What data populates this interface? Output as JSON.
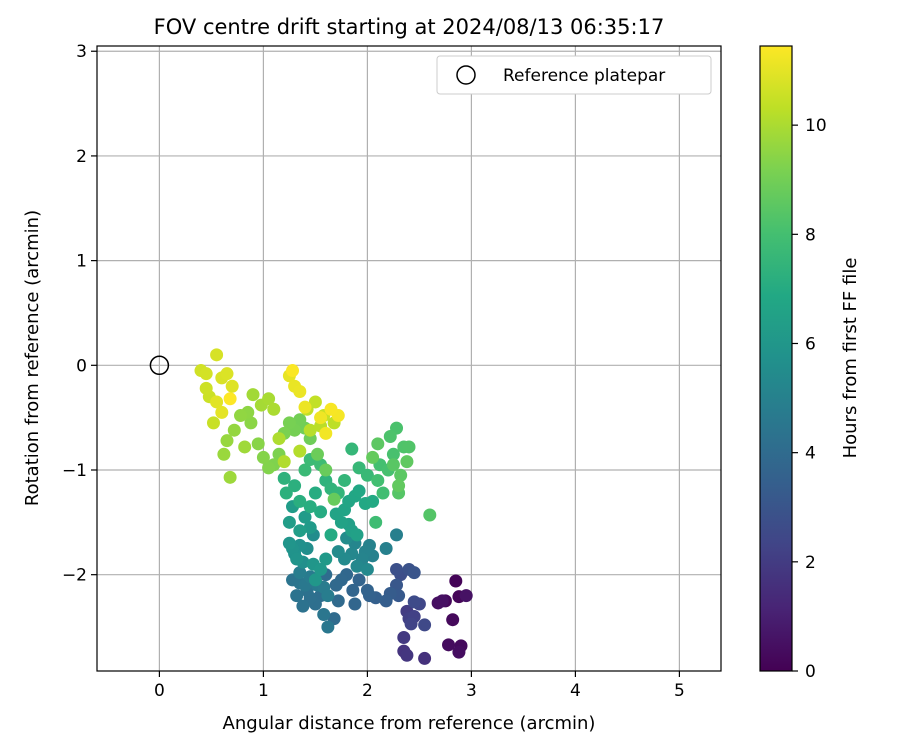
{
  "chart_data": {
    "type": "scatter",
    "title": "FOV centre drift starting at 2024/08/13 06:35:17",
    "xlabel": "Angular distance from reference (arcmin)",
    "ylabel": "Rotation from reference (arcmin)",
    "xlim": [
      -0.6,
      5.4
    ],
    "ylim": [
      -2.92,
      3.05
    ],
    "xticks": [
      0,
      1,
      2,
      3,
      4,
      5
    ],
    "yticks": [
      -2,
      -1,
      0,
      1,
      2,
      3
    ],
    "xtick_labels": [
      "0",
      "1",
      "2",
      "3",
      "4",
      "5"
    ],
    "ytick_labels": [
      "−2",
      "−1",
      "0",
      "1",
      "2",
      "3"
    ],
    "grid": true,
    "legend": {
      "placement": "top-right",
      "entry": "Reference platepar"
    },
    "reference_point": {
      "x": 0,
      "y": 0
    },
    "colorbar": {
      "label": "Hours from first FF file",
      "range": [
        0,
        11.45
      ],
      "ticks": [
        0,
        2,
        4,
        6,
        8,
        10
      ],
      "tick_labels": [
        "0",
        "2",
        "4",
        "6",
        "8",
        "10"
      ],
      "colormap": "viridis"
    },
    "points": [
      [
        2.85,
        -2.06,
        0.1
      ],
      [
        2.88,
        -2.21,
        0.15
      ],
      [
        2.75,
        -2.25,
        0.2
      ],
      [
        2.82,
        -2.43,
        0.25
      ],
      [
        2.9,
        -2.68,
        0.3
      ],
      [
        2.78,
        -2.67,
        0.35
      ],
      [
        2.88,
        -2.74,
        0.4
      ],
      [
        2.68,
        -2.27,
        0.45
      ],
      [
        2.72,
        -2.25,
        0.5
      ],
      [
        2.95,
        -2.2,
        0.55
      ],
      [
        2.55,
        -2.8,
        1.6
      ],
      [
        2.35,
        -2.73,
        1.7
      ],
      [
        2.38,
        -2.77,
        1.8
      ],
      [
        2.35,
        -2.6,
        1.9
      ],
      [
        2.38,
        -2.35,
        2.0
      ],
      [
        2.4,
        -2.42,
        2.1
      ],
      [
        2.45,
        -2.4,
        2.2
      ],
      [
        2.42,
        -2.47,
        2.3
      ],
      [
        2.5,
        -2.28,
        2.4
      ],
      [
        2.55,
        -2.48,
        2.5
      ],
      [
        2.45,
        -2.26,
        2.6
      ],
      [
        2.32,
        -2.0,
        2.7
      ],
      [
        2.28,
        -1.95,
        2.8
      ],
      [
        2.4,
        -1.95,
        2.9
      ],
      [
        2.45,
        -1.98,
        3.0
      ],
      [
        2.28,
        -2.1,
        3.1
      ],
      [
        2.3,
        -2.2,
        3.2
      ],
      [
        2.22,
        -2.18,
        3.3
      ],
      [
        2.18,
        -2.25,
        3.4
      ],
      [
        2.08,
        -2.22,
        3.5
      ],
      [
        2.02,
        -2.2,
        3.55
      ],
      [
        2.0,
        -2.15,
        3.6
      ],
      [
        1.92,
        -2.05,
        3.65
      ],
      [
        1.86,
        -2.15,
        3.7
      ],
      [
        1.88,
        -2.28,
        3.75
      ],
      [
        1.8,
        -2.0,
        3.8
      ],
      [
        1.75,
        -2.05,
        3.85
      ],
      [
        1.7,
        -2.1,
        3.9
      ],
      [
        1.72,
        -2.25,
        3.95
      ],
      [
        1.68,
        -2.42,
        4.0
      ],
      [
        1.6,
        -2.0,
        4.05
      ],
      [
        1.55,
        -2.2,
        4.1
      ],
      [
        1.5,
        -2.28,
        4.15
      ],
      [
        1.45,
        -2.22,
        4.2
      ],
      [
        1.42,
        -2.15,
        4.25
      ],
      [
        1.38,
        -2.3,
        4.3
      ],
      [
        1.32,
        -2.2,
        4.35
      ],
      [
        1.28,
        -2.05,
        4.4
      ],
      [
        1.35,
        -2.08,
        4.45
      ],
      [
        1.58,
        -2.38,
        4.5
      ],
      [
        1.62,
        -2.5,
        4.55
      ],
      [
        1.4,
        -2.1,
        4.6
      ],
      [
        1.52,
        -2.1,
        4.65
      ],
      [
        1.45,
        -2.02,
        4.7
      ],
      [
        1.58,
        -2.12,
        4.75
      ],
      [
        1.62,
        -2.2,
        4.8
      ],
      [
        1.35,
        -1.98,
        4.85
      ],
      [
        2.28,
        -1.62,
        4.9
      ],
      [
        2.18,
        -1.75,
        4.95
      ],
      [
        2.05,
        -1.82,
        5.0
      ],
      [
        2.02,
        -1.72,
        5.05
      ],
      [
        1.98,
        -1.78,
        5.1
      ],
      [
        1.95,
        -1.85,
        5.15
      ],
      [
        1.88,
        -1.7,
        5.2
      ],
      [
        1.85,
        -1.8,
        5.25
      ],
      [
        1.9,
        -1.92,
        5.3
      ],
      [
        2.0,
        -1.95,
        5.35
      ],
      [
        1.78,
        -1.85,
        5.4
      ],
      [
        1.72,
        -1.78,
        5.45
      ],
      [
        1.8,
        -1.65,
        5.5
      ],
      [
        1.48,
        -1.62,
        5.55
      ],
      [
        1.42,
        -1.75,
        5.6
      ],
      [
        1.38,
        -1.88,
        5.65
      ],
      [
        1.35,
        -1.72,
        5.7
      ],
      [
        1.3,
        -1.8,
        5.75
      ],
      [
        1.28,
        -1.75,
        5.8
      ],
      [
        1.32,
        -1.85,
        5.85
      ],
      [
        1.25,
        -1.7,
        5.9
      ],
      [
        1.48,
        -1.9,
        5.95
      ],
      [
        1.5,
        -2.05,
        6.0
      ],
      [
        1.55,
        -1.95,
        6.05
      ],
      [
        1.6,
        -1.85,
        6.1
      ],
      [
        1.45,
        -1.55,
        6.15
      ],
      [
        1.4,
        -1.45,
        6.2
      ],
      [
        1.28,
        -1.35,
        6.25
      ],
      [
        1.25,
        -1.5,
        6.3
      ],
      [
        1.35,
        -1.58,
        6.35
      ],
      [
        1.82,
        -1.52,
        6.4
      ],
      [
        1.85,
        -1.58,
        6.45
      ],
      [
        1.9,
        -1.62,
        6.5
      ],
      [
        1.75,
        -1.5,
        6.55
      ],
      [
        1.7,
        -1.42,
        6.6
      ],
      [
        1.78,
        -1.38,
        6.65
      ],
      [
        1.82,
        -1.3,
        6.7
      ],
      [
        1.88,
        -1.25,
        6.75
      ],
      [
        1.92,
        -1.2,
        6.8
      ],
      [
        1.98,
        -1.32,
        6.85
      ],
      [
        2.05,
        -1.3,
        6.9
      ],
      [
        1.65,
        -1.62,
        6.95
      ],
      [
        1.55,
        -1.4,
        7.0
      ],
      [
        1.5,
        -1.22,
        7.05
      ],
      [
        1.45,
        -1.35,
        7.1
      ],
      [
        1.35,
        -1.3,
        7.15
      ],
      [
        1.3,
        -1.15,
        7.2
      ],
      [
        1.22,
        -1.22,
        7.25
      ],
      [
        1.2,
        -1.08,
        7.3
      ],
      [
        1.6,
        -1.1,
        7.35
      ],
      [
        1.65,
        -1.18,
        7.4
      ],
      [
        1.72,
        -1.22,
        7.45
      ],
      [
        1.78,
        -1.1,
        7.5
      ],
      [
        1.85,
        -0.8,
        7.55
      ],
      [
        1.92,
        -0.98,
        7.6
      ],
      [
        2.0,
        -1.05,
        7.65
      ],
      [
        1.4,
        -1.0,
        7.7
      ],
      [
        1.45,
        -0.9,
        7.75
      ],
      [
        1.55,
        -0.95,
        7.8
      ],
      [
        2.08,
        -1.5,
        7.85
      ],
      [
        2.15,
        -1.22,
        7.9
      ],
      [
        2.1,
        -1.1,
        7.95
      ],
      [
        2.12,
        -0.95,
        8.0
      ],
      [
        2.2,
        -1.0,
        8.05
      ],
      [
        2.25,
        -0.85,
        8.1
      ],
      [
        2.28,
        -0.6,
        8.15
      ],
      [
        2.22,
        -0.68,
        8.2
      ],
      [
        2.35,
        -0.78,
        8.25
      ],
      [
        2.4,
        -0.78,
        8.3
      ],
      [
        2.6,
        -1.43,
        8.35
      ],
      [
        2.3,
        -1.22,
        8.4
      ],
      [
        2.25,
        -0.95,
        8.45
      ],
      [
        2.32,
        -1.05,
        8.5
      ],
      [
        2.1,
        -0.75,
        8.55
      ],
      [
        2.38,
        -0.92,
        8.6
      ],
      [
        2.3,
        -1.15,
        8.65
      ],
      [
        2.05,
        -0.88,
        8.7
      ],
      [
        1.68,
        -1.28,
        8.75
      ],
      [
        1.6,
        -1.0,
        8.8
      ],
      [
        1.52,
        -0.85,
        8.85
      ],
      [
        1.45,
        -0.7,
        8.9
      ],
      [
        1.4,
        -0.6,
        8.95
      ],
      [
        1.35,
        -0.52,
        9.0
      ],
      [
        1.3,
        -0.62,
        9.05
      ],
      [
        1.25,
        -0.55,
        9.1
      ],
      [
        1.2,
        -0.65,
        9.15
      ],
      [
        1.15,
        -0.85,
        9.2
      ],
      [
        1.1,
        -0.95,
        9.25
      ],
      [
        1.05,
        -0.98,
        9.3
      ],
      [
        1.0,
        -0.88,
        9.35
      ],
      [
        0.95,
        -0.75,
        9.4
      ],
      [
        0.88,
        -0.55,
        9.45
      ],
      [
        0.85,
        -0.45,
        9.5
      ],
      [
        0.78,
        -0.48,
        9.55
      ],
      [
        0.72,
        -0.62,
        9.6
      ],
      [
        0.65,
        -0.72,
        9.65
      ],
      [
        0.62,
        -0.85,
        9.7
      ],
      [
        0.68,
        -1.07,
        9.75
      ],
      [
        0.82,
        -0.78,
        9.8
      ],
      [
        0.9,
        -0.28,
        9.85
      ],
      [
        0.98,
        -0.38,
        9.9
      ],
      [
        1.05,
        -0.32,
        9.95
      ],
      [
        1.1,
        -0.42,
        10.0
      ],
      [
        1.15,
        -0.7,
        10.05
      ],
      [
        1.2,
        -0.92,
        10.1
      ],
      [
        1.35,
        -0.82,
        10.15
      ],
      [
        1.45,
        -0.62,
        10.2
      ],
      [
        1.55,
        -0.58,
        10.25
      ],
      [
        1.68,
        -0.55,
        10.3
      ],
      [
        1.42,
        -0.42,
        10.35
      ],
      [
        1.5,
        -0.35,
        10.4
      ],
      [
        1.58,
        -0.48,
        10.45
      ],
      [
        0.52,
        -0.55,
        10.5
      ],
      [
        0.48,
        -0.3,
        10.55
      ],
      [
        0.45,
        -0.22,
        10.6
      ],
      [
        0.4,
        -0.05,
        10.65
      ],
      [
        0.45,
        -0.08,
        10.7
      ],
      [
        0.55,
        0.1,
        10.75
      ],
      [
        0.6,
        -0.12,
        10.8
      ],
      [
        0.65,
        -0.08,
        10.85
      ],
      [
        0.7,
        -0.2,
        10.9
      ],
      [
        0.55,
        -0.35,
        10.95
      ],
      [
        0.6,
        -0.45,
        11.0
      ],
      [
        1.25,
        -0.1,
        11.05
      ],
      [
        1.3,
        -0.2,
        11.1
      ],
      [
        1.35,
        -0.25,
        11.12
      ],
      [
        1.4,
        -0.4,
        11.15
      ],
      [
        1.55,
        -0.5,
        11.2
      ],
      [
        1.6,
        -0.65,
        11.25
      ],
      [
        1.72,
        -0.48,
        11.3
      ],
      [
        1.65,
        -0.42,
        11.35
      ],
      [
        1.28,
        -0.05,
        11.4
      ],
      [
        0.68,
        -0.32,
        11.45
      ]
    ]
  }
}
